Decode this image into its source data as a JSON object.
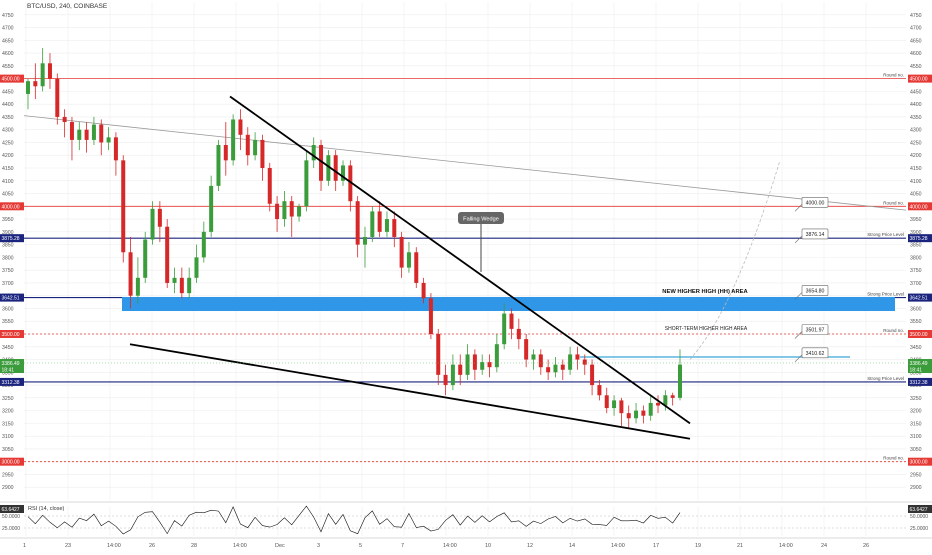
{
  "header": {
    "symbol": "BTC/USD, 240, COINBASE"
  },
  "colors": {
    "up": "#3b9c3b",
    "down": "#d62828",
    "grid": "#eeeeee",
    "red_level": "#e53935",
    "blue_level": "#1a237e",
    "zone": "#2f96e8",
    "cyan_line": "#5bb5e0",
    "axis_text": "#555555",
    "tag_gray": "#666666",
    "rsi_line": "#111111"
  },
  "chart_data": {
    "type": "candlestick",
    "title": "BTC/USD, 240, COINBASE",
    "ylim": [
      2850,
      4800
    ],
    "y_ticks": [
      2900,
      2950,
      3000,
      3050,
      3100,
      3150,
      3200,
      3250,
      3300,
      3350,
      3400,
      3450,
      3500,
      3550,
      3600,
      3650,
      3700,
      3750,
      3800,
      3850,
      3900,
      3950,
      4000,
      4050,
      4100,
      4150,
      4200,
      4250,
      4300,
      4350,
      4400,
      4450,
      4500,
      4550,
      4600,
      4650,
      4700,
      4750
    ],
    "x_tick_labels": [
      "1",
      "23",
      "14:00",
      "26",
      "28",
      "14:00",
      "Dec",
      "3",
      "5",
      "7",
      "14:00",
      "10",
      "12",
      "14",
      "14:00",
      "17",
      "19",
      "21",
      "14:00",
      "24",
      "26"
    ],
    "grid": true,
    "candles": [
      [
        4440,
        4490,
        4380,
        4500
      ],
      [
        4490,
        4470,
        4420,
        4560
      ],
      [
        4470,
        4560,
        4450,
        4620
      ],
      [
        4560,
        4500,
        4460,
        4600
      ],
      [
        4500,
        4350,
        4320,
        4520
      ],
      [
        4350,
        4330,
        4270,
        4380
      ],
      [
        4330,
        4260,
        4180,
        4350
      ],
      [
        4260,
        4300,
        4220,
        4330
      ],
      [
        4300,
        4260,
        4210,
        4330
      ],
      [
        4260,
        4320,
        4240,
        4350
      ],
      [
        4320,
        4250,
        4200,
        4340
      ],
      [
        4250,
        4270,
        4220,
        4310
      ],
      [
        4270,
        4180,
        4120,
        4290
      ],
      [
        4180,
        3820,
        3780,
        4200
      ],
      [
        3820,
        3650,
        3600,
        3880
      ],
      [
        3650,
        3720,
        3620,
        3800
      ],
      [
        3720,
        3870,
        3700,
        3900
      ],
      [
        3870,
        3990,
        3850,
        4020
      ],
      [
        3990,
        3920,
        3860,
        4020
      ],
      [
        3920,
        3700,
        3680,
        3950
      ],
      [
        3700,
        3720,
        3660,
        3760
      ],
      [
        3720,
        3660,
        3640,
        3760
      ],
      [
        3660,
        3720,
        3640,
        3760
      ],
      [
        3720,
        3800,
        3700,
        3850
      ],
      [
        3800,
        3900,
        3780,
        3940
      ],
      [
        3900,
        4080,
        3880,
        4120
      ],
      [
        4080,
        4240,
        4060,
        4260
      ],
      [
        4240,
        4180,
        4120,
        4330
      ],
      [
        4180,
        4340,
        4160,
        4360
      ],
      [
        4340,
        4280,
        4220,
        4380
      ],
      [
        4280,
        4200,
        4160,
        4310
      ],
      [
        4200,
        4260,
        4180,
        4290
      ],
      [
        4260,
        4150,
        4100,
        4280
      ],
      [
        4150,
        4010,
        3980,
        4170
      ],
      [
        4010,
        3950,
        3900,
        4040
      ],
      [
        3950,
        4020,
        3920,
        4060
      ],
      [
        4020,
        3960,
        3880,
        4040
      ],
      [
        3960,
        4000,
        3940,
        4010
      ],
      [
        4000,
        4180,
        3980,
        4220
      ],
      [
        4180,
        4240,
        4150,
        4270
      ],
      [
        4240,
        4100,
        4060,
        4260
      ],
      [
        4100,
        4200,
        4080,
        4220
      ],
      [
        4200,
        4100,
        4060,
        4220
      ],
      [
        4100,
        4160,
        4080,
        4180
      ],
      [
        4160,
        4020,
        3980,
        4180
      ],
      [
        4020,
        3850,
        3800,
        4040
      ],
      [
        3850,
        3880,
        3760,
        3920
      ],
      [
        3880,
        3980,
        3860,
        4000
      ],
      [
        3980,
        3900,
        3880,
        4020
      ],
      [
        3900,
        3950,
        3880,
        3980
      ],
      [
        3950,
        3880,
        3840,
        3980
      ],
      [
        3880,
        3760,
        3720,
        3900
      ],
      [
        3760,
        3820,
        3740,
        3860
      ],
      [
        3820,
        3700,
        3680,
        3840
      ],
      [
        3700,
        3640,
        3620,
        3720
      ],
      [
        3640,
        3500,
        3480,
        3660
      ],
      [
        3500,
        3340,
        3300,
        3520
      ],
      [
        3340,
        3300,
        3260,
        3380
      ],
      [
        3300,
        3380,
        3280,
        3420
      ],
      [
        3380,
        3340,
        3300,
        3420
      ],
      [
        3340,
        3420,
        3320,
        3460
      ],
      [
        3420,
        3360,
        3320,
        3440
      ],
      [
        3360,
        3390,
        3340,
        3420
      ],
      [
        3390,
        3370,
        3330,
        3420
      ],
      [
        3370,
        3460,
        3350,
        3500
      ],
      [
        3460,
        3580,
        3440,
        3620
      ],
      [
        3580,
        3520,
        3480,
        3600
      ],
      [
        3520,
        3480,
        3440,
        3560
      ],
      [
        3480,
        3400,
        3370,
        3500
      ],
      [
        3400,
        3420,
        3360,
        3440
      ],
      [
        3420,
        3370,
        3340,
        3440
      ],
      [
        3370,
        3350,
        3320,
        3400
      ],
      [
        3350,
        3380,
        3330,
        3410
      ],
      [
        3380,
        3360,
        3320,
        3400
      ],
      [
        3360,
        3420,
        3340,
        3450
      ],
      [
        3420,
        3400,
        3360,
        3450
      ],
      [
        3400,
        3380,
        3340,
        3420
      ],
      [
        3380,
        3300,
        3260,
        3400
      ],
      [
        3300,
        3260,
        3240,
        3320
      ],
      [
        3260,
        3210,
        3190,
        3290
      ],
      [
        3210,
        3240,
        3180,
        3260
      ],
      [
        3240,
        3190,
        3140,
        3250
      ],
      [
        3190,
        3170,
        3130,
        3220
      ],
      [
        3170,
        3200,
        3150,
        3230
      ],
      [
        3200,
        3180,
        3150,
        3220
      ],
      [
        3180,
        3230,
        3160,
        3260
      ],
      [
        3230,
        3220,
        3190,
        3260
      ],
      [
        3220,
        3260,
        3200,
        3280
      ],
      [
        3260,
        3250,
        3220,
        3270
      ],
      [
        3250,
        3380,
        3240,
        3440
      ]
    ],
    "levels": [
      {
        "price": 4500.0,
        "label": "4500.00",
        "kind": "red-solid",
        "right_text": "Round no."
      },
      {
        "price": 4000.0,
        "label": "4000.00",
        "kind": "red-solid",
        "right_text": "Round no."
      },
      {
        "price": 3875.28,
        "label": "3875.28",
        "kind": "blue",
        "right_text": "Strong Price Level"
      },
      {
        "price": 3642.51,
        "label": "3642.51",
        "kind": "blue",
        "right_text": "Strong Price Level"
      },
      {
        "price": 3500.0,
        "label": "3500.00",
        "kind": "red-dotted",
        "right_text": "Round no."
      },
      {
        "price": 3312.38,
        "label": "3312.38",
        "kind": "blue",
        "right_text": "Strong Price Level"
      },
      {
        "price": 3000.0,
        "label": "3000.00",
        "kind": "red-dotted",
        "right_text": "Round no."
      }
    ],
    "current_price": {
      "label": "3386.49",
      "sub": "18:41"
    },
    "callouts": [
      "4000.00",
      "3876.14",
      "3654.80",
      "3501.97",
      "3410.62"
    ],
    "annotations": {
      "falling_wedge": "Falling Wedge",
      "hh_area": "NEW HIGHER HIGH (HH) AREA",
      "short_term": "SHORT-TERM HIGHER HIGH AREA"
    },
    "rsi": {
      "label": "RSI (14, close)",
      "value": "63.6427",
      "ticks": [
        "50.0000",
        "25.0000"
      ]
    }
  }
}
